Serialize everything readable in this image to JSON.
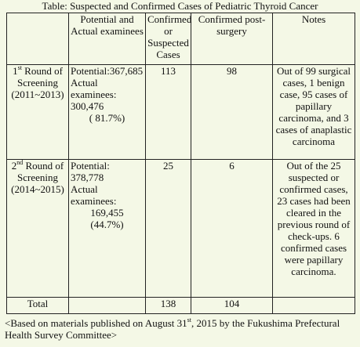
{
  "title": "Table: Suspected and Confirmed Cases of Pediatric Thyroid Cancer",
  "table": {
    "header": [
      "Potential and Actual examinees",
      "Confirmed or Suspected Cases",
      "Confirmed post-surgery",
      "Notes"
    ],
    "rows": [
      {
        "round": {
          "num": "1",
          "sup": "st",
          "text": "Round of Screening (2011~2013)"
        },
        "potential": "Potential:367,685",
        "actual_label": "Actual examinees:",
        "actual": "300,476",
        "percent": "( 81.7%)",
        "confirmed_or_suspected": "113",
        "confirmed_post_surgery": "98",
        "notes": "Out of 99 surgical cases, 1 benign case, 95 cases of papillary carcinoma, and 3 cases of anaplastic carcinoma"
      },
      {
        "round": {
          "num": "2",
          "sup": "nd",
          "text": "Round of Screening (2014~2015)"
        },
        "potential": "Potential: 378,778",
        "actual_label": "Actual examinees:",
        "actual": "169,455",
        "percent": "(44.7%)",
        "confirmed_or_suspected": "25",
        "confirmed_post_surgery": "6",
        "notes": "Out of the 25 suspected or confirmed cases, 23 cases had been cleared in the previous round of check-ups. 6 confirmed cases were papillary carcinoma."
      }
    ],
    "total": {
      "label": "Total",
      "confirmed_or_suspected": "138",
      "confirmed_post_surgery": "104"
    }
  },
  "footnote": {
    "before": "<Based on materials published on August 31",
    "sup": "st",
    "after": ", 2015 by the Fukushima Prefectural Health Survey Committee>"
  }
}
